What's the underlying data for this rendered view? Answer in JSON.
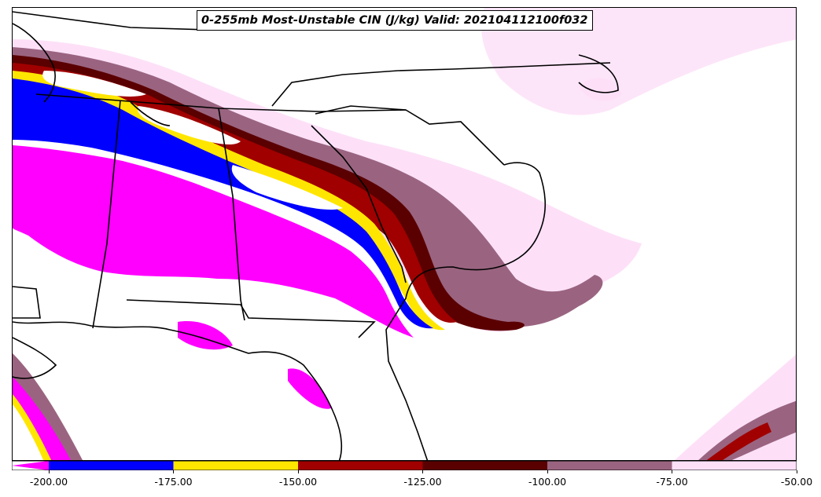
{
  "title": "0-255mb Most-Unstable CIN (J/kg) Valid: 202104112100f032",
  "colorbar": {
    "ticks": [
      "-200.00",
      "-175.00",
      "-150.00",
      "-125.00",
      "-100.00",
      "-75.00",
      "-50.00"
    ],
    "bins": [
      {
        "range": "< -200",
        "color": "#ff00ff"
      },
      {
        "range": "-200 to -175",
        "color": "#0000ff"
      },
      {
        "range": "-175 to -150",
        "color": "#ffe600"
      },
      {
        "range": "-150 to -125",
        "color": "#a00000"
      },
      {
        "range": "-125 to -100",
        "color": "#5a0000"
      },
      {
        "range": "-100 to -75",
        "color": "#9a6480"
      },
      {
        "range": "-75 to -50",
        "color": "#fde0f8"
      }
    ]
  },
  "map": {
    "region": "Southeastern United States",
    "boundary_color": "#000000",
    "background": "#ffffff"
  }
}
